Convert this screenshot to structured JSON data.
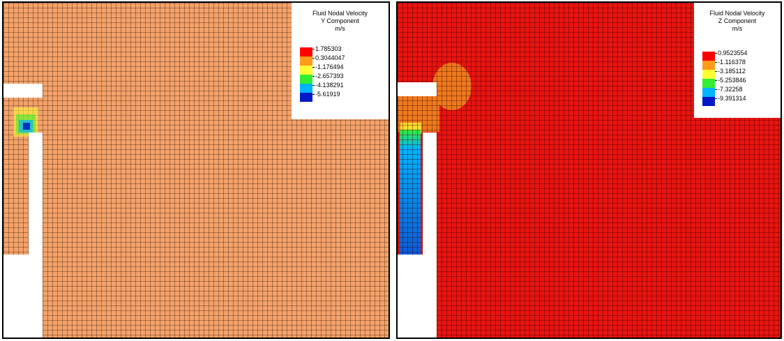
{
  "panels": [
    {
      "id": "left",
      "fill_color": "#f4a26a",
      "legend": {
        "title_line1": "Fluid Nodal Velocity",
        "title_line2": "Y Component",
        "unit": "m/s",
        "values": [
          "1.785303",
          "0.3044047",
          "-1.176494",
          "-2.657393",
          "-4.138291",
          "-5.61919"
        ],
        "colors": [
          "#ff0000",
          "#ff9a1a",
          "#ffff33",
          "#33ee33",
          "#00b4ff",
          "#0018c8"
        ]
      }
    },
    {
      "id": "right",
      "fill_color": "#e81410",
      "legend": {
        "title_line1": "Fluid Nodal Velocity",
        "title_line2": "Z Component",
        "unit": "m/s",
        "values": [
          "0.9523554",
          "-1.116378",
          "-3.185112",
          "-5.253846",
          "-7.32258",
          "-9.391314"
        ],
        "colors": [
          "#ff0000",
          "#ff9a1a",
          "#ffff33",
          "#33ee33",
          "#00b4ff",
          "#0018c8"
        ]
      }
    }
  ]
}
